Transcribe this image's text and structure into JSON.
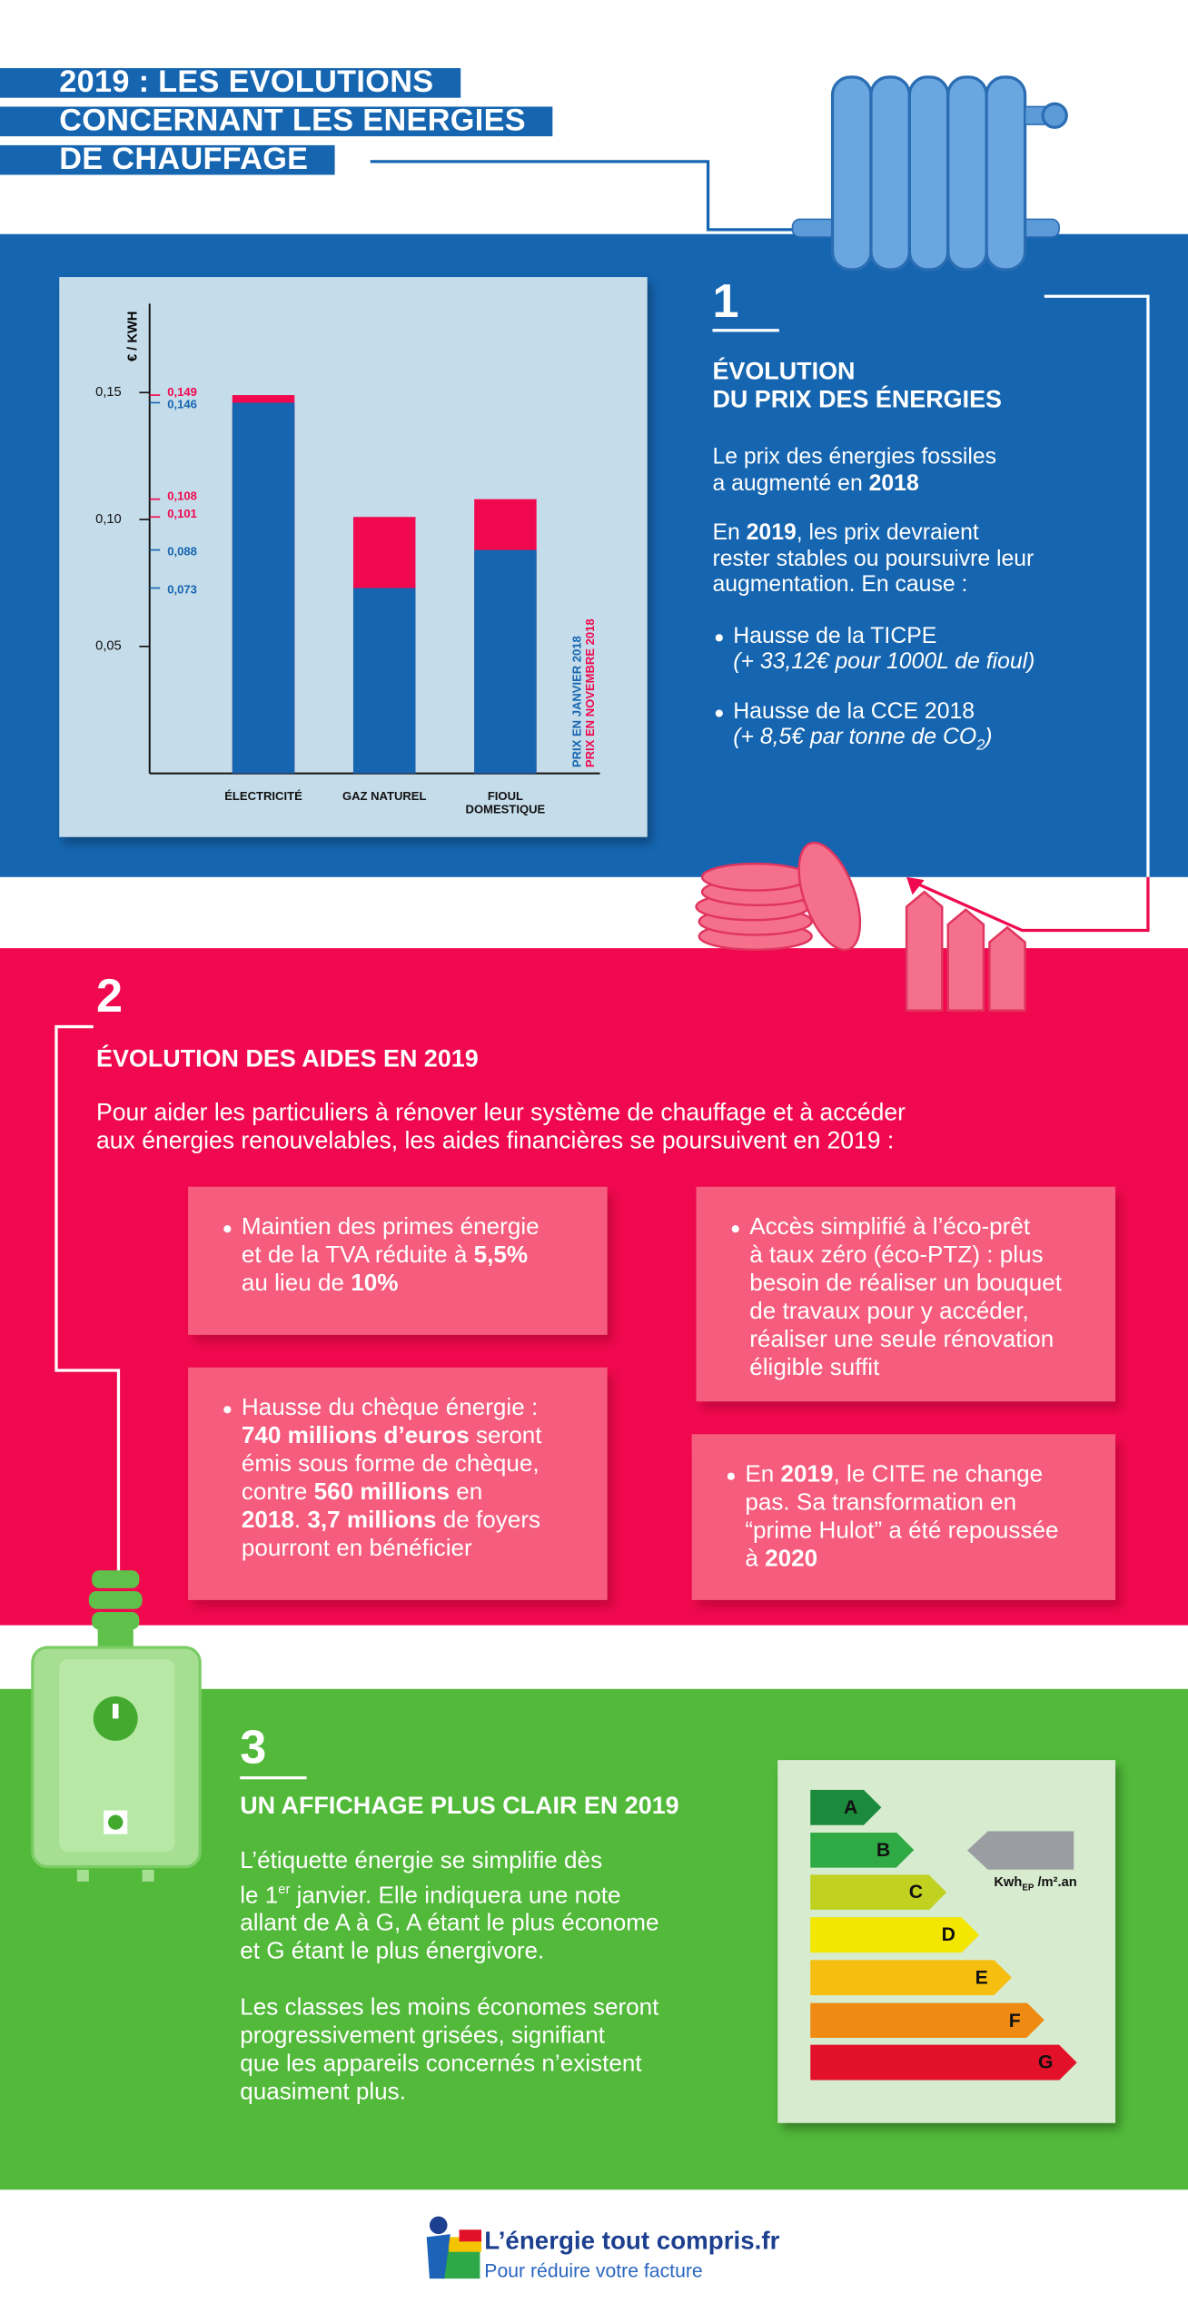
{
  "header": {
    "title_lines": [
      "2019 : LES EVOLUTIONS",
      "CONCERNANT LES ENERGIES",
      "DE CHAUFFAGE"
    ]
  },
  "chart_data": {
    "type": "bar",
    "barmode": "overlay",
    "y_label": "€ / KWH",
    "categories": [
      "ÉLECTRICITÉ",
      "GAZ NATUREL",
      "FIOUL\nDOMESTIQUE"
    ],
    "series": [
      {
        "name": "PRIX EN JANVIER 2018",
        "color": "#1565b0",
        "values": [
          0.146,
          0.073,
          0.088
        ],
        "value_labels": [
          "0,146",
          "0,073",
          "0,088"
        ]
      },
      {
        "name": "PRIX EN NOVEMBRE 2018",
        "color": "#f0094f",
        "values": [
          0.149,
          0.101,
          0.108
        ],
        "value_labels": [
          "0,149",
          "0,101",
          "0,108"
        ]
      }
    ],
    "ylim": [
      0,
      0.185
    ],
    "yticks": [
      {
        "value": 0.05,
        "label": "0,05"
      },
      {
        "value": 0.1,
        "label": "0,10"
      },
      {
        "value": 0.15,
        "label": "0,15"
      }
    ]
  },
  "section1": {
    "number": "1",
    "title": "ÉVOLUTION\nDU PRIX DES ÉNERGIES",
    "p1": [
      "Le prix des énergies fossiles\na augmenté en ",
      "2018"
    ],
    "p2": [
      "En ",
      "2019",
      ", les prix devraient\nrester stables ou poursuivre leur\naugmentation. En cause :"
    ],
    "bullet1": {
      "text": "Hausse de la TICPE",
      "detail": "(+ 33,12€ pour 1000L de fioul)"
    },
    "bullet2": {
      "text": "Hausse de la CCE 2018",
      "detail": "(+ 8,5€ par tonne de CO",
      "sub": "2",
      "end": ")"
    }
  },
  "section2": {
    "number": "2",
    "title": "ÉVOLUTION DES AIDES EN 2019",
    "intro": "Pour aider les particuliers à rénover leur système de chauffage et à accéder\naux énergies renouvelables, les aides financières se poursuivent en 2019 :",
    "boxes": [
      [
        "Maintien des primes énergie\net de la TVA réduite à ",
        "5,5%",
        "\nau lieu de ",
        "10%"
      ],
      [
        "Accès simplifié à l’éco-prêt\nà taux zéro (éco-PTZ) : plus\nbesoin de réaliser un bouquet\nde travaux pour y accéder,\nréaliser une seule rénovation\néligible suffit"
      ],
      [
        "Hausse du chèque énergie :\n",
        "740 millions d’euros",
        " seront\némis sous forme de chèque,\ncontre ",
        "560 millions",
        " en\n",
        "2018",
        ". ",
        "3,7 millions",
        " de foyers\npourront en bénéficier"
      ],
      [
        "En ",
        "2019",
        ", le CITE ne change\npas. Sa transformation en\n“prime Hulot” a été repoussée\nà ",
        "2020"
      ]
    ]
  },
  "section3": {
    "number": "3",
    "title": "UN AFFICHAGE PLUS CLAIR EN 2019",
    "p1": {
      "before": "L’étiquette énergie se simplifie dès\nle 1",
      "sup": "er",
      "after": " janvier. Elle indiquera une note\nallant de A à G, A étant le plus économe\net G étant le plus énergivore."
    },
    "p2": "Les classes les moins économes seront\nprogressivement grisées, signifiant\nque les appareils concernés n’existent\nquasiment plus.",
    "energy_label": {
      "classes": [
        "A",
        "B",
        "C",
        "D",
        "E",
        "F",
        "G"
      ],
      "colors": [
        "#1b8a3c",
        "#2faa44",
        "#c0d21f",
        "#f3e600",
        "#f6bf0f",
        "#ef8a12",
        "#e3102a"
      ],
      "unit": {
        "base": "Kwh",
        "sub": "EP",
        "after": " /m².an"
      }
    }
  },
  "footer": {
    "logo_title": "L’énergie tout compris.fr",
    "logo_tagline": "Pour réduire votre facture"
  }
}
